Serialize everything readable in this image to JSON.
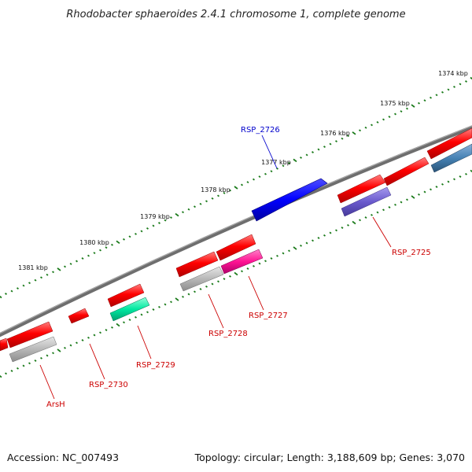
{
  "title": "Rhodobacter sphaeroides 2.4.1 chromosome 1, complete genome",
  "kbp_ticks": [
    "1374 kbp",
    "1375 kbp",
    "1376 kbp",
    "1377 kbp",
    "1378 kbp",
    "1379 kbp",
    "1380 kbp",
    "1381 kbp"
  ],
  "gene_labels": [
    "RSP_2726",
    "RSP_2725",
    "RSP_2727",
    "RSP_2728",
    "RSP_2729",
    "RSP_2730",
    "ArsH"
  ],
  "colors": {
    "backbone": "#7a7a7a",
    "forward_gene": "#ff0000",
    "selected_gene": "#0000ff",
    "forward_label": "#0000cc",
    "reverse_label": "#cc0000",
    "ruler_dots": "#1a7a1a"
  },
  "footer": {
    "accession": "Accession: NC_007493",
    "summary": "Topology: circular; Length: 3,188,609 bp; Genes: 3,070"
  }
}
